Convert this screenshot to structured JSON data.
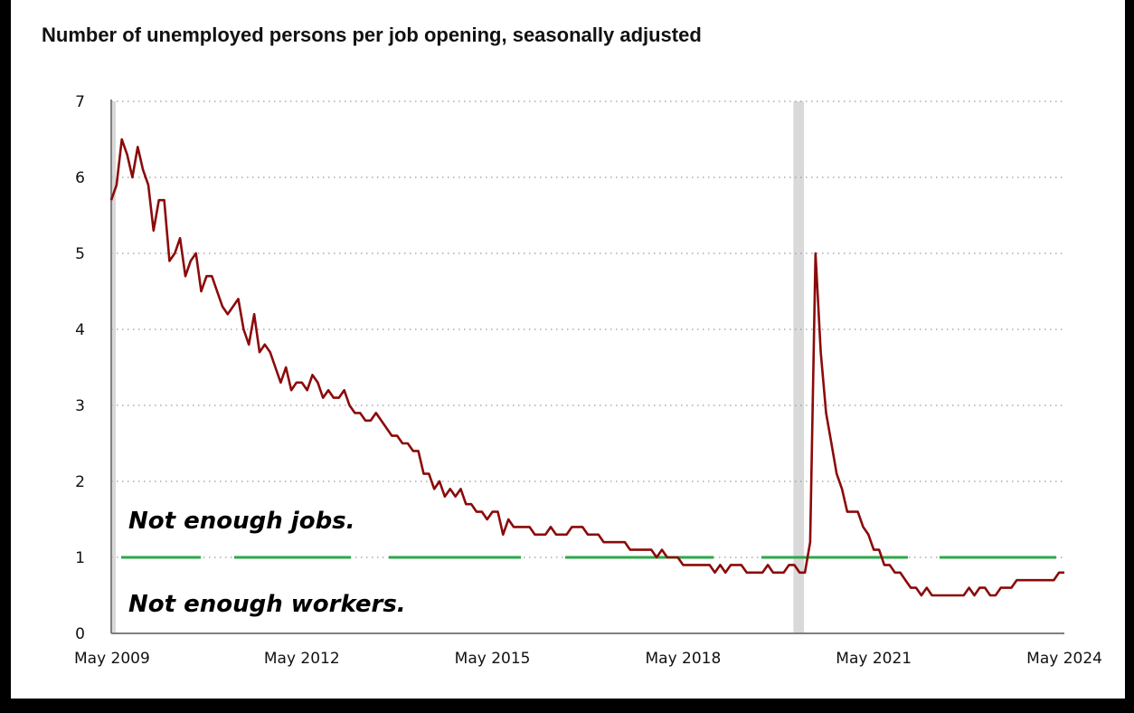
{
  "chart_data": {
    "type": "line",
    "title": "Number of unemployed persons per job opening, seasonally adjusted",
    "xlabel": "",
    "ylabel": "",
    "ylim": [
      0,
      7
    ],
    "yticks": [
      "0",
      "1",
      "2",
      "3",
      "4",
      "5",
      "6",
      "7"
    ],
    "xticks": [
      "May 2009",
      "May 2012",
      "May 2015",
      "May 2018",
      "May 2021",
      "May 2024"
    ],
    "grid": "horizontal dotted",
    "annotations": [
      "Not enough jobs.",
      "Not enough workers."
    ],
    "colors": {
      "line": "#8b0a0a",
      "reference": "#2ea84a",
      "recession": "#d9d9d9"
    },
    "reference_line": 1,
    "recession_shading": [
      [
        "2009-05",
        "2009-06"
      ],
      [
        "2020-02",
        "2020-04"
      ]
    ],
    "series": [
      {
        "points": [
          [
            "2009-05",
            5.7
          ],
          [
            "2009-06",
            5.9
          ],
          [
            "2009-07",
            6.5
          ],
          [
            "2009-08",
            6.3
          ],
          [
            "2009-09",
            6.0
          ],
          [
            "2009-10",
            6.4
          ],
          [
            "2009-11",
            6.1
          ],
          [
            "2009-12",
            5.9
          ],
          [
            "2010-01",
            5.3
          ],
          [
            "2010-02",
            5.7
          ],
          [
            "2010-03",
            5.7
          ],
          [
            "2010-04",
            4.9
          ],
          [
            "2010-05",
            5.0
          ],
          [
            "2010-06",
            5.2
          ],
          [
            "2010-07",
            4.7
          ],
          [
            "2010-08",
            4.9
          ],
          [
            "2010-09",
            5.0
          ],
          [
            "2010-10",
            4.5
          ],
          [
            "2010-11",
            4.7
          ],
          [
            "2010-12",
            4.7
          ],
          [
            "2011-01",
            4.5
          ],
          [
            "2011-02",
            4.3
          ],
          [
            "2011-03",
            4.2
          ],
          [
            "2011-04",
            4.3
          ],
          [
            "2011-05",
            4.4
          ],
          [
            "2011-06",
            4.0
          ],
          [
            "2011-07",
            3.8
          ],
          [
            "2011-08",
            4.2
          ],
          [
            "2011-09",
            3.7
          ],
          [
            "2011-10",
            3.8
          ],
          [
            "2011-11",
            3.7
          ],
          [
            "2011-12",
            3.5
          ],
          [
            "2012-01",
            3.3
          ],
          [
            "2012-02",
            3.5
          ],
          [
            "2012-03",
            3.2
          ],
          [
            "2012-04",
            3.3
          ],
          [
            "2012-05",
            3.3
          ],
          [
            "2012-06",
            3.2
          ],
          [
            "2012-07",
            3.4
          ],
          [
            "2012-08",
            3.3
          ],
          [
            "2012-09",
            3.1
          ],
          [
            "2012-10",
            3.2
          ],
          [
            "2012-11",
            3.1
          ],
          [
            "2012-12",
            3.1
          ],
          [
            "2013-01",
            3.2
          ],
          [
            "2013-02",
            3.0
          ],
          [
            "2013-03",
            2.9
          ],
          [
            "2013-04",
            2.9
          ],
          [
            "2013-05",
            2.8
          ],
          [
            "2013-06",
            2.8
          ],
          [
            "2013-07",
            2.9
          ],
          [
            "2013-08",
            2.8
          ],
          [
            "2013-09",
            2.7
          ],
          [
            "2013-10",
            2.6
          ],
          [
            "2013-11",
            2.6
          ],
          [
            "2013-12",
            2.5
          ],
          [
            "2014-01",
            2.5
          ],
          [
            "2014-02",
            2.4
          ],
          [
            "2014-03",
            2.4
          ],
          [
            "2014-04",
            2.1
          ],
          [
            "2014-05",
            2.1
          ],
          [
            "2014-06",
            1.9
          ],
          [
            "2014-07",
            2.0
          ],
          [
            "2014-08",
            1.8
          ],
          [
            "2014-09",
            1.9
          ],
          [
            "2014-10",
            1.8
          ],
          [
            "2014-11",
            1.9
          ],
          [
            "2014-12",
            1.7
          ],
          [
            "2015-01",
            1.7
          ],
          [
            "2015-02",
            1.6
          ],
          [
            "2015-03",
            1.6
          ],
          [
            "2015-04",
            1.5
          ],
          [
            "2015-05",
            1.6
          ],
          [
            "2015-06",
            1.6
          ],
          [
            "2015-07",
            1.3
          ],
          [
            "2015-08",
            1.5
          ],
          [
            "2015-09",
            1.4
          ],
          [
            "2015-10",
            1.4
          ],
          [
            "2015-11",
            1.4
          ],
          [
            "2015-12",
            1.4
          ],
          [
            "2016-01",
            1.3
          ],
          [
            "2016-02",
            1.3
          ],
          [
            "2016-03",
            1.3
          ],
          [
            "2016-04",
            1.4
          ],
          [
            "2016-05",
            1.3
          ],
          [
            "2016-06",
            1.3
          ],
          [
            "2016-07",
            1.3
          ],
          [
            "2016-08",
            1.4
          ],
          [
            "2016-09",
            1.4
          ],
          [
            "2016-10",
            1.4
          ],
          [
            "2016-11",
            1.3
          ],
          [
            "2016-12",
            1.3
          ],
          [
            "2017-01",
            1.3
          ],
          [
            "2017-02",
            1.2
          ],
          [
            "2017-03",
            1.2
          ],
          [
            "2017-04",
            1.2
          ],
          [
            "2017-05",
            1.2
          ],
          [
            "2017-06",
            1.2
          ],
          [
            "2017-07",
            1.1
          ],
          [
            "2017-08",
            1.1
          ],
          [
            "2017-09",
            1.1
          ],
          [
            "2017-10",
            1.1
          ],
          [
            "2017-11",
            1.1
          ],
          [
            "2017-12",
            1.0
          ],
          [
            "2018-01",
            1.1
          ],
          [
            "2018-02",
            1.0
          ],
          [
            "2018-03",
            1.0
          ],
          [
            "2018-04",
            1.0
          ],
          [
            "2018-05",
            0.9
          ],
          [
            "2018-06",
            0.9
          ],
          [
            "2018-07",
            0.9
          ],
          [
            "2018-08",
            0.9
          ],
          [
            "2018-09",
            0.9
          ],
          [
            "2018-10",
            0.9
          ],
          [
            "2018-11",
            0.8
          ],
          [
            "2018-12",
            0.9
          ],
          [
            "2019-01",
            0.8
          ],
          [
            "2019-02",
            0.9
          ],
          [
            "2019-03",
            0.9
          ],
          [
            "2019-04",
            0.9
          ],
          [
            "2019-05",
            0.8
          ],
          [
            "2019-06",
            0.8
          ],
          [
            "2019-07",
            0.8
          ],
          [
            "2019-08",
            0.8
          ],
          [
            "2019-09",
            0.9
          ],
          [
            "2019-10",
            0.8
          ],
          [
            "2019-11",
            0.8
          ],
          [
            "2019-12",
            0.8
          ],
          [
            "2020-01",
            0.9
          ],
          [
            "2020-02",
            0.9
          ],
          [
            "2020-03",
            0.8
          ],
          [
            "2020-04",
            0.8
          ],
          [
            "2020-05",
            1.2
          ],
          [
            "2020-06",
            5.0
          ],
          [
            "2020-07",
            3.7
          ],
          [
            "2020-08",
            2.9
          ],
          [
            "2020-09",
            2.5
          ],
          [
            "2020-10",
            2.1
          ],
          [
            "2020-11",
            1.9
          ],
          [
            "2020-12",
            1.6
          ],
          [
            "2021-01",
            1.6
          ],
          [
            "2021-02",
            1.6
          ],
          [
            "2021-03",
            1.4
          ],
          [
            "2021-04",
            1.3
          ],
          [
            "2021-05",
            1.1
          ],
          [
            "2021-06",
            1.1
          ],
          [
            "2021-07",
            0.9
          ],
          [
            "2021-08",
            0.9
          ],
          [
            "2021-09",
            0.8
          ],
          [
            "2021-10",
            0.8
          ],
          [
            "2021-11",
            0.7
          ],
          [
            "2021-12",
            0.6
          ],
          [
            "2022-01",
            0.6
          ],
          [
            "2022-02",
            0.5
          ],
          [
            "2022-03",
            0.6
          ],
          [
            "2022-04",
            0.5
          ],
          [
            "2022-05",
            0.5
          ],
          [
            "2022-06",
            0.5
          ],
          [
            "2022-07",
            0.5
          ],
          [
            "2022-08",
            0.5
          ],
          [
            "2022-09",
            0.5
          ],
          [
            "2022-10",
            0.5
          ],
          [
            "2022-11",
            0.6
          ],
          [
            "2022-12",
            0.5
          ],
          [
            "2023-01",
            0.6
          ],
          [
            "2023-02",
            0.6
          ],
          [
            "2023-03",
            0.5
          ],
          [
            "2023-04",
            0.5
          ],
          [
            "2023-05",
            0.6
          ],
          [
            "2023-06",
            0.6
          ],
          [
            "2023-07",
            0.6
          ],
          [
            "2023-08",
            0.7
          ],
          [
            "2023-09",
            0.7
          ],
          [
            "2023-10",
            0.7
          ],
          [
            "2023-11",
            0.7
          ],
          [
            "2023-12",
            0.7
          ],
          [
            "2024-01",
            0.7
          ],
          [
            "2024-02",
            0.7
          ],
          [
            "2024-03",
            0.7
          ],
          [
            "2024-04",
            0.8
          ],
          [
            "2024-05",
            0.8
          ]
        ]
      }
    ]
  }
}
